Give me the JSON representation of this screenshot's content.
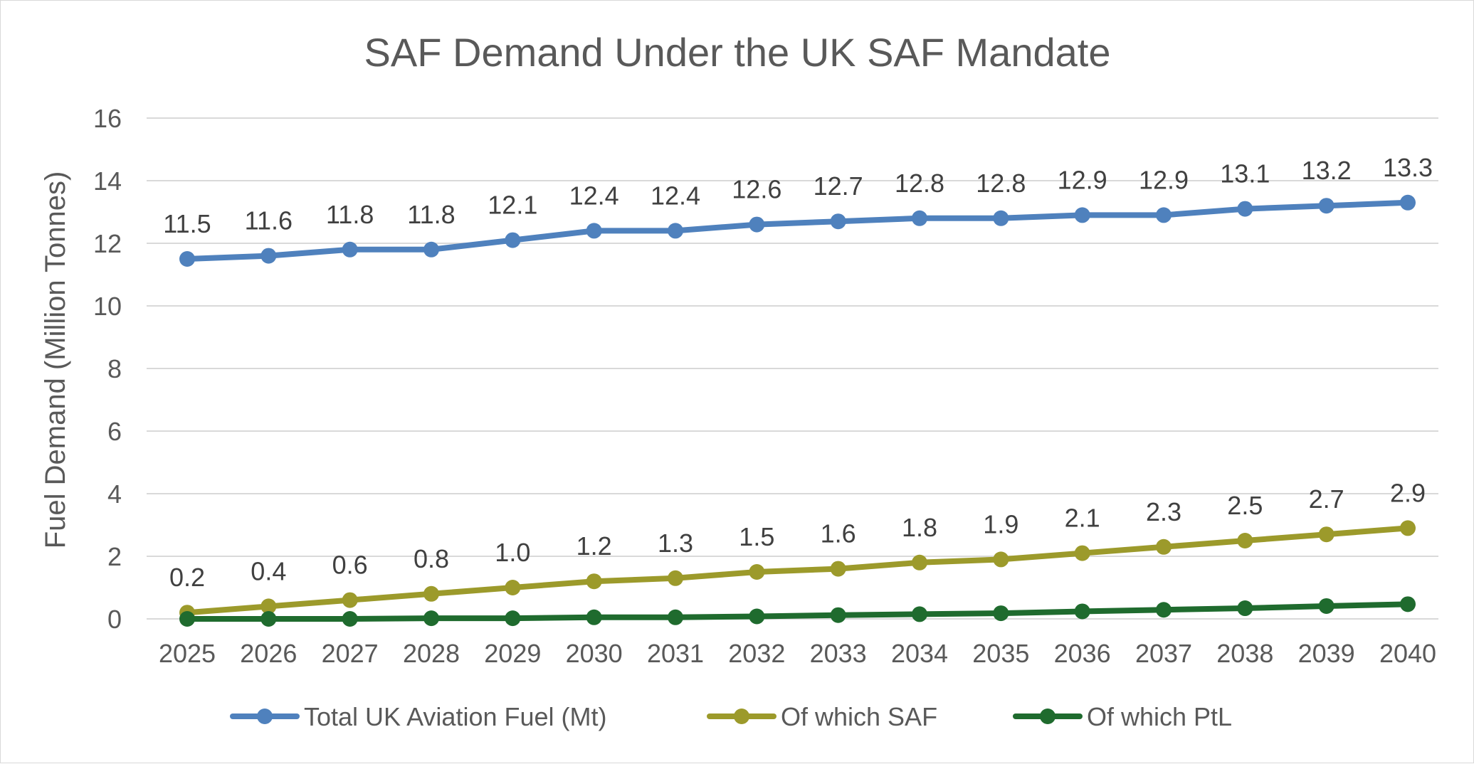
{
  "chart_data": {
    "type": "line",
    "title": "SAF Demand Under the UK SAF Mandate",
    "xlabel": "",
    "ylabel": "Fuel Demand (Million Tonnes)",
    "ylim": [
      0,
      16
    ],
    "yticks": [
      "0",
      "2",
      "4",
      "6",
      "8",
      "10",
      "12",
      "14",
      "16"
    ],
    "grid": true,
    "legend_position": "bottom",
    "categories": [
      "2025",
      "2026",
      "2027",
      "2028",
      "2029",
      "2030",
      "2031",
      "2032",
      "2033",
      "2034",
      "2035",
      "2036",
      "2037",
      "2038",
      "2039",
      "2040"
    ],
    "series": [
      {
        "name": "Total UK Aviation Fuel (Mt)",
        "color": "#4f81bd",
        "show_labels": true,
        "values": [
          11.5,
          11.6,
          11.8,
          11.8,
          12.1,
          12.4,
          12.4,
          12.6,
          12.7,
          12.8,
          12.8,
          12.9,
          12.9,
          13.1,
          13.2,
          13.3
        ],
        "labels": [
          "11.5",
          "11.6",
          "11.8",
          "11.8",
          "12.1",
          "12.4",
          "12.4",
          "12.6",
          "12.7",
          "12.8",
          "12.8",
          "12.9",
          "12.9",
          "13.1",
          "13.2",
          "13.3"
        ]
      },
      {
        "name": "Of which SAF",
        "color": "#9c9a2b",
        "show_labels": true,
        "values": [
          0.2,
          0.4,
          0.6,
          0.8,
          1.0,
          1.2,
          1.3,
          1.5,
          1.6,
          1.8,
          1.9,
          2.1,
          2.3,
          2.5,
          2.7,
          2.9
        ],
        "labels": [
          "0.2",
          "0.4",
          "0.6",
          "0.8",
          "1.0",
          "1.2",
          "1.3",
          "1.5",
          "1.6",
          "1.8",
          "1.9",
          "2.1",
          "2.3",
          "2.5",
          "2.7",
          "2.9"
        ]
      },
      {
        "name": "Of which PtL",
        "color": "#1f6b2e",
        "show_labels": false,
        "values": [
          0.0,
          0.0,
          0.0,
          0.02,
          0.02,
          0.05,
          0.05,
          0.08,
          0.12,
          0.15,
          0.18,
          0.24,
          0.29,
          0.34,
          0.41,
          0.47
        ]
      }
    ]
  }
}
